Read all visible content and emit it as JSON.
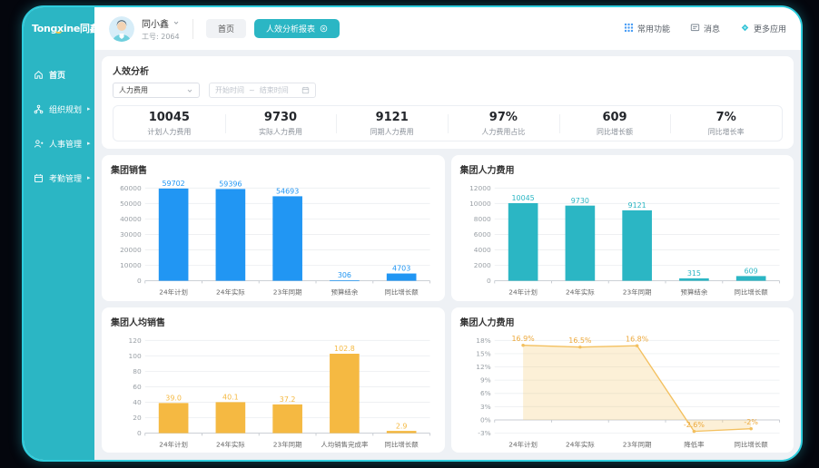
{
  "app": {
    "logo": "Tongxine同鑫",
    "sidebar": [
      {
        "name": "home",
        "label": "首页",
        "icon": "home-icon",
        "active": true,
        "arrow": false
      },
      {
        "name": "org-planning",
        "label": "组织规划",
        "icon": "org-icon",
        "active": false,
        "arrow": true
      },
      {
        "name": "hr-management",
        "label": "人事管理",
        "icon": "people-icon",
        "active": false,
        "arrow": true
      },
      {
        "name": "attendance-management",
        "label": "考勤管理",
        "icon": "calendar-icon",
        "active": false,
        "arrow": true
      }
    ]
  },
  "header": {
    "user_name": "同小鑫",
    "user_id": "工号: 2064",
    "tabs": [
      {
        "name": "home",
        "label": "首页",
        "active": false,
        "closable": false
      },
      {
        "name": "efficiency-report",
        "label": "人效分析报表",
        "active": true,
        "closable": true
      }
    ],
    "actions": [
      {
        "name": "quick-functions",
        "label": "常用功能",
        "icon": "grid-icon"
      },
      {
        "name": "messages",
        "label": "消息",
        "icon": "message-icon"
      },
      {
        "name": "more-apps",
        "label": "更多应用",
        "icon": "apps-icon"
      }
    ]
  },
  "filter_panel": {
    "title": "人效分析",
    "select_value": "人力费用",
    "date_start_placeholder": "开始时间",
    "date_separator": "~",
    "date_end_placeholder": "结束时间",
    "stats": [
      {
        "value": "10045",
        "label": "计划人力费用"
      },
      {
        "value": "9730",
        "label": "实际人力费用"
      },
      {
        "value": "9121",
        "label": "同期人力费用"
      },
      {
        "value": "97%",
        "label": "人力费用占比"
      },
      {
        "value": "609",
        "label": "同比增长额"
      },
      {
        "value": "7%",
        "label": "同比增长率"
      }
    ]
  },
  "colors": {
    "brand_teal": "#2bb6c4",
    "chart_blue": "#2196f3",
    "chart_orange": "#f5b942",
    "line_orange": "#f3c05f"
  },
  "chart_data": [
    {
      "id": "group-sales",
      "type": "bar",
      "title": "集团销售",
      "color": "#2196f3",
      "categories": [
        "24年计划",
        "24年实际",
        "23年同期",
        "预算结余",
        "同比增长额"
      ],
      "values": [
        59702,
        59396,
        54693,
        306,
        4703
      ],
      "labels": [
        "59702",
        "59396",
        "54693",
        "306",
        "4703"
      ],
      "ylim": [
        0,
        60000
      ],
      "yticks": [
        0,
        10000,
        20000,
        30000,
        40000,
        50000,
        60000
      ],
      "ytick_labels": [
        "0",
        "10000",
        "20000",
        "30000",
        "40000",
        "50000",
        "60000"
      ],
      "grid": true,
      "legend": false
    },
    {
      "id": "group-hr-cost",
      "type": "bar",
      "title": "集团人力费用",
      "color": "#2bb6c4",
      "categories": [
        "24年计划",
        "24年实际",
        "23年同期",
        "预算结余",
        "同比增长额"
      ],
      "values": [
        10045,
        9730,
        9121,
        315,
        609
      ],
      "labels": [
        "10045",
        "9730",
        "9121",
        "315",
        "609"
      ],
      "ylim": [
        0,
        12000
      ],
      "yticks": [
        0,
        2000,
        4000,
        6000,
        8000,
        10000,
        12000
      ],
      "ytick_labels": [
        "0",
        "2000",
        "4000",
        "6000",
        "8000",
        "10000",
        "12000"
      ],
      "grid": true,
      "legend": false
    },
    {
      "id": "group-per-capita-sales",
      "type": "bar",
      "title": "集团人均销售",
      "color": "#f5b942",
      "categories": [
        "24年计划",
        "24年实际",
        "23年同期",
        "人均销售完成率",
        "同比增长额"
      ],
      "values": [
        39.0,
        40.1,
        37.2,
        102.8,
        2.9
      ],
      "labels": [
        "39.0",
        "40.1",
        "37.2",
        "102.8",
        "2.9"
      ],
      "ylim": [
        0,
        120
      ],
      "yticks": [
        0,
        20,
        40,
        60,
        80,
        100,
        120
      ],
      "ytick_labels": [
        "0",
        "20",
        "40",
        "60",
        "80",
        "100",
        "120"
      ],
      "grid": true,
      "legend": false
    },
    {
      "id": "group-hr-cost-rate",
      "type": "line",
      "title": "集团人力费用",
      "color": "#f3c05f",
      "fill": "rgba(246, 202, 112, 0.28)",
      "categories": [
        "24年计划",
        "24年实际",
        "23年同期",
        "降低率",
        "同比增长额"
      ],
      "values": [
        16.9,
        16.5,
        16.8,
        -2.6,
        -2
      ],
      "labels": [
        "16.9%",
        "16.5%",
        "16.8%",
        "-2.6%",
        "-2%"
      ],
      "ylim": [
        -3,
        18
      ],
      "yticks": [
        -3,
        0,
        3,
        6,
        9,
        12,
        15,
        18
      ],
      "ytick_labels": [
        "-3%",
        "0%",
        "3%",
        "6%",
        "9%",
        "12%",
        "15%",
        "18%"
      ],
      "grid": true,
      "legend": false
    }
  ]
}
